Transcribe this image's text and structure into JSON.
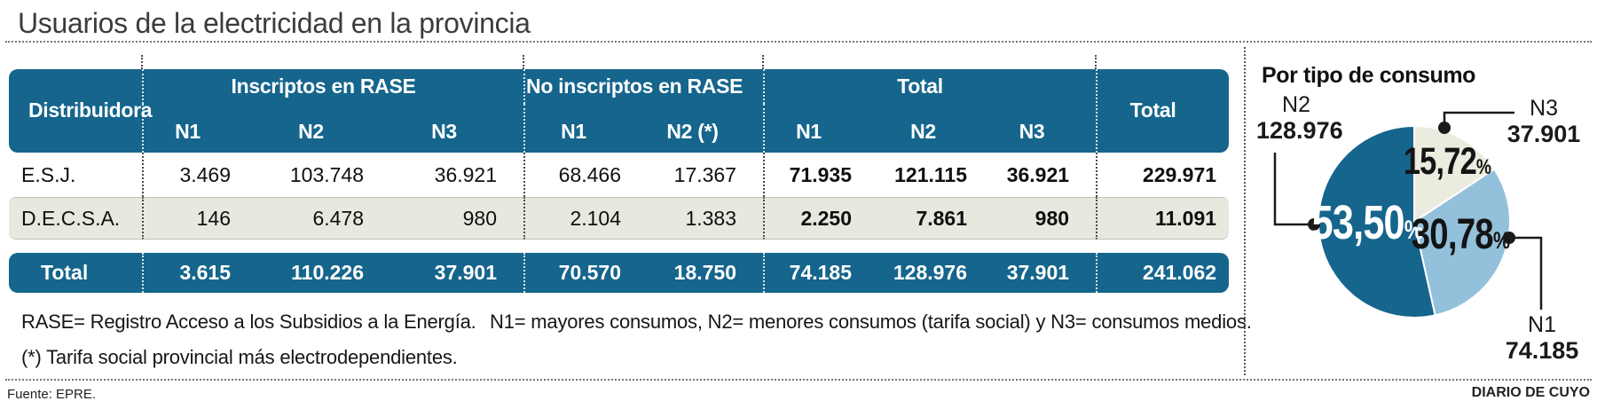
{
  "title": "Usuarios de la electricidad en la provincia",
  "table": {
    "header": {
      "distribuidora": "Distribuidora",
      "groups": [
        {
          "label": "Inscriptos en RASE",
          "cols": [
            "N1",
            "N2",
            "N3"
          ]
        },
        {
          "label": "No inscriptos en RASE",
          "cols": [
            "N1",
            "N2 (*)"
          ]
        },
        {
          "label": "Total",
          "cols": [
            "N1",
            "N2",
            "N3"
          ]
        }
      ],
      "total": "Total"
    },
    "rows": [
      {
        "name": "E.S.J.",
        "values": [
          "3.469",
          "103.748",
          "36.921",
          "68.466",
          "17.367",
          "71.935",
          "121.115",
          "36.921",
          "229.971"
        ]
      },
      {
        "name": "D.E.C.S.A.",
        "values": [
          "146",
          "6.478",
          "980",
          "2.104",
          "1.383",
          "2.250",
          "7.861",
          "980",
          "11.091"
        ]
      }
    ],
    "total_row": {
      "name": "Total",
      "values": [
        "3.615",
        "110.226",
        "37.901",
        "70.570",
        "18.750",
        "74.185",
        "128.976",
        "37.901",
        "241.062"
      ]
    }
  },
  "notes": {
    "rase": "RASE= Registro Acceso a los Subsidios a la Energía.",
    "levels": "N1= mayores consumos, N2= menores consumos (tarifa social) y N3= consumos medios.",
    "asterisk": "(*) Tarifa social provincial más electrodependientes."
  },
  "footer": {
    "source": "Fuente: EPRE.",
    "credit": "DIARIO DE CUYO"
  },
  "chart_data": {
    "type": "pie",
    "title": "Por tipo de consumo",
    "start_angle_deg": 0,
    "direction": "clockwise",
    "pct_symbol": "%",
    "slices": [
      {
        "label": "N3",
        "value": 37901,
        "value_label": "37.901",
        "pct": 15.72,
        "pct_label": "15,72",
        "color": "#ECEBDF"
      },
      {
        "label": "N1",
        "value": 74185,
        "value_label": "74.185",
        "pct": 30.78,
        "pct_label": "30,78",
        "color": "#93C1DB"
      },
      {
        "label": "N2",
        "value": 128976,
        "value_label": "128.976",
        "pct": 53.5,
        "pct_label": "53,50",
        "color": "#15658D"
      }
    ]
  },
  "colors": {
    "accent_teal": "#15658D",
    "light_blue": "#93C1DB",
    "cream": "#ECEBDF",
    "row_alt_bg": "#E9E8DF"
  }
}
